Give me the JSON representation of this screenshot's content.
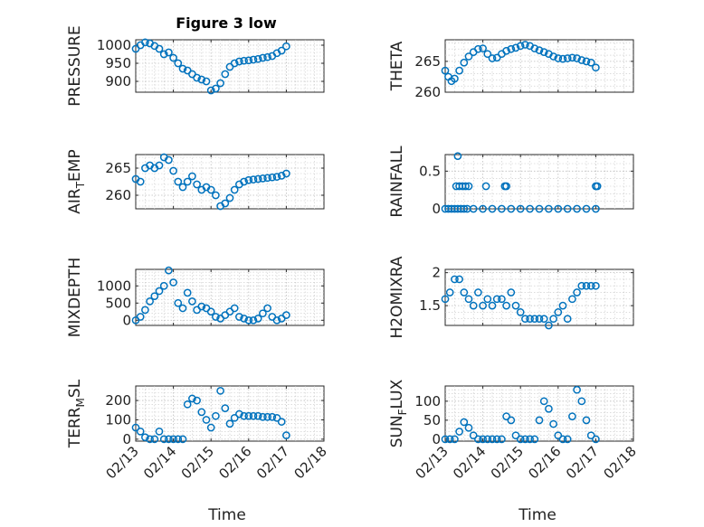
{
  "figure_title": "Figure 3 low",
  "colors": {
    "marker": "#0072BD",
    "axes": "#262626",
    "grid": "#c8c8c8"
  },
  "chart_data": [
    {
      "type": "scatter",
      "ylabel": "PRESSURE",
      "ylim": [
        870,
        1015
      ],
      "yticks": [
        900,
        950,
        1000
      ],
      "ytick_labels": [
        "900",
        "950",
        "1000"
      ],
      "grid": true,
      "x": [
        "02/13 00:00",
        "02/13 03:00",
        "02/13 06:00",
        "02/13 09:00",
        "02/13 12:00",
        "02/13 15:00",
        "02/13 18:00",
        "02/13 21:00",
        "02/14 00:00",
        "02/14 03:00",
        "02/14 06:00",
        "02/14 09:00",
        "02/14 12:00",
        "02/14 15:00",
        "02/14 18:00",
        "02/14 21:00",
        "02/15 00:00",
        "02/15 03:00",
        "02/15 06:00",
        "02/15 09:00",
        "02/15 12:00",
        "02/15 15:00",
        "02/15 18:00",
        "02/15 21:00",
        "02/16 00:00",
        "02/16 03:00",
        "02/16 06:00",
        "02/16 09:00",
        "02/16 12:00",
        "02/16 15:00",
        "02/16 18:00",
        "02/16 21:00",
        "02/17 00:00"
      ],
      "y": [
        990,
        1000,
        1008,
        1005,
        998,
        990,
        975,
        980,
        965,
        950,
        935,
        930,
        920,
        910,
        905,
        900,
        875,
        880,
        895,
        920,
        940,
        950,
        955,
        957,
        958,
        960,
        962,
        965,
        967,
        970,
        978,
        985,
        997
      ]
    },
    {
      "type": "scatter",
      "ylabel": "THETA",
      "ylim": [
        260,
        268.5
      ],
      "yticks": [
        260,
        265
      ],
      "ytick_labels": [
        "260",
        "265"
      ],
      "grid": true,
      "x": [
        "02/13 00:00",
        "02/13 02:00",
        "02/13 04:00",
        "02/13 06:00",
        "02/13 09:00",
        "02/13 12:00",
        "02/13 15:00",
        "02/13 18:00",
        "02/13 21:00",
        "02/14 00:00",
        "02/14 03:00",
        "02/14 06:00",
        "02/14 09:00",
        "02/14 12:00",
        "02/14 15:00",
        "02/14 18:00",
        "02/14 21:00",
        "02/15 00:00",
        "02/15 03:00",
        "02/15 06:00",
        "02/15 09:00",
        "02/15 12:00",
        "02/15 15:00",
        "02/15 18:00",
        "02/15 21:00",
        "02/16 00:00",
        "02/16 03:00",
        "02/16 06:00",
        "02/16 09:00",
        "02/16 12:00",
        "02/16 15:00",
        "02/16 18:00",
        "02/16 21:00",
        "02/17 00:00"
      ],
      "y": [
        263.5,
        262.5,
        261.8,
        262.2,
        263.5,
        264.8,
        265.8,
        266.5,
        267,
        267.1,
        266.2,
        265.5,
        265.6,
        266.2,
        266.7,
        267,
        267.2,
        267.5,
        267.7,
        267.5,
        267.1,
        266.8,
        266.5,
        266.2,
        265.8,
        265.5,
        265.4,
        265.5,
        265.6,
        265.5,
        265.2,
        265,
        264.8,
        264
      ]
    },
    {
      "type": "scatter",
      "ylabel": "AIR_TEMP",
      "ylim": [
        257.5,
        267.5
      ],
      "yticks": [
        260,
        265
      ],
      "ytick_labels": [
        "260",
        "265"
      ],
      "grid": true,
      "x": [
        "02/13 00:00",
        "02/13 03:00",
        "02/13 06:00",
        "02/13 09:00",
        "02/13 12:00",
        "02/13 15:00",
        "02/13 18:00",
        "02/13 21:00",
        "02/14 00:00",
        "02/14 03:00",
        "02/14 06:00",
        "02/14 09:00",
        "02/14 12:00",
        "02/14 15:00",
        "02/14 18:00",
        "02/14 21:00",
        "02/15 00:00",
        "02/15 03:00",
        "02/15 06:00",
        "02/15 09:00",
        "02/15 12:00",
        "02/15 15:00",
        "02/15 18:00",
        "02/15 21:00",
        "02/16 00:00",
        "02/16 03:00",
        "02/16 06:00",
        "02/16 09:00",
        "02/16 12:00",
        "02/16 15:00",
        "02/16 18:00",
        "02/16 21:00",
        "02/17 00:00"
      ],
      "y": [
        263,
        262.5,
        265,
        265.5,
        265,
        265.5,
        267,
        266.5,
        264.5,
        262.5,
        261.5,
        262.5,
        263.5,
        262,
        261,
        261.5,
        261,
        260,
        258,
        258.5,
        259.5,
        261,
        262,
        262.5,
        262.8,
        262.9,
        263,
        263.1,
        263.2,
        263.3,
        263.4,
        263.6,
        264
      ]
    },
    {
      "type": "scatter",
      "ylabel": "RAINFALL",
      "ylim": [
        0,
        0.72
      ],
      "yticks": [
        0,
        0.5
      ],
      "ytick_labels": [
        "0",
        "0.5"
      ],
      "grid": true,
      "x": [
        "02/13 00:00",
        "02/13 02:00",
        "02/13 04:00",
        "02/13 06:00",
        "02/13 08:00",
        "02/13 10:00",
        "02/13 12:00",
        "02/13 14:00",
        "02/13 18:00",
        "02/14 00:00",
        "02/14 06:00",
        "02/14 12:00",
        "02/14 18:00",
        "02/15 00:00",
        "02/15 06:00",
        "02/15 12:00",
        "02/15 18:00",
        "02/16 00:00",
        "02/16 06:00",
        "02/16 12:00",
        "02/16 18:00",
        "02/17 00:00",
        "02/13 07:00",
        "02/13 09:00",
        "02/13 11:00",
        "02/13 13:00",
        "02/13 15:00",
        "02/13 08:00",
        "02/14 02:00",
        "02/14 14:00",
        "02/14 15:00",
        "02/17 00:00",
        "02/17 01:00"
      ],
      "y": [
        0,
        0,
        0,
        0,
        0,
        0,
        0,
        0,
        0,
        0,
        0,
        0,
        0,
        0,
        0,
        0,
        0,
        0,
        0,
        0,
        0,
        0,
        0.3,
        0.3,
        0.3,
        0.3,
        0.3,
        0.7,
        0.3,
        0.3,
        0.3,
        0.3,
        0.3
      ]
    },
    {
      "type": "scatter",
      "ylabel": "MIXDEPTH",
      "ylim": [
        -150,
        1480
      ],
      "yticks": [
        0,
        500,
        1000
      ],
      "ytick_labels": [
        "0",
        "500",
        "1000"
      ],
      "grid": true,
      "x": [
        "02/13 00:00",
        "02/13 03:00",
        "02/13 06:00",
        "02/13 09:00",
        "02/13 12:00",
        "02/13 15:00",
        "02/13 18:00",
        "02/13 21:00",
        "02/14 00:00",
        "02/14 03:00",
        "02/14 06:00",
        "02/14 09:00",
        "02/14 12:00",
        "02/14 15:00",
        "02/14 18:00",
        "02/14 21:00",
        "02/15 00:00",
        "02/15 03:00",
        "02/15 06:00",
        "02/15 09:00",
        "02/15 12:00",
        "02/15 15:00",
        "02/15 18:00",
        "02/15 21:00",
        "02/16 00:00",
        "02/16 03:00",
        "02/16 06:00",
        "02/16 09:00",
        "02/16 12:00",
        "02/16 15:00",
        "02/16 18:00",
        "02/16 21:00",
        "02/17 00:00"
      ],
      "y": [
        0,
        100,
        300,
        550,
        700,
        850,
        1000,
        1450,
        1100,
        500,
        350,
        800,
        550,
        300,
        400,
        350,
        250,
        100,
        50,
        150,
        250,
        350,
        100,
        50,
        0,
        0,
        50,
        200,
        350,
        100,
        0,
        50,
        150
      ]
    },
    {
      "type": "scatter",
      "ylabel": "H2OMIXRA",
      "ylim": [
        1.2,
        2.05
      ],
      "yticks": [
        1.5,
        2
      ],
      "ytick_labels": [
        "1.5",
        "2"
      ],
      "grid": true,
      "x": [
        "02/13 00:00",
        "02/13 03:00",
        "02/13 06:00",
        "02/13 09:00",
        "02/13 12:00",
        "02/13 15:00",
        "02/13 18:00",
        "02/13 21:00",
        "02/14 00:00",
        "02/14 03:00",
        "02/14 06:00",
        "02/14 09:00",
        "02/14 12:00",
        "02/14 15:00",
        "02/14 18:00",
        "02/14 21:00",
        "02/15 00:00",
        "02/15 03:00",
        "02/15 06:00",
        "02/15 09:00",
        "02/15 12:00",
        "02/15 15:00",
        "02/15 18:00",
        "02/15 21:00",
        "02/16 00:00",
        "02/16 03:00",
        "02/16 06:00",
        "02/16 09:00",
        "02/16 12:00",
        "02/16 15:00",
        "02/16 18:00",
        "02/16 21:00",
        "02/17 00:00"
      ],
      "y": [
        1.6,
        1.7,
        1.9,
        1.9,
        1.7,
        1.6,
        1.5,
        1.7,
        1.5,
        1.6,
        1.5,
        1.6,
        1.6,
        1.5,
        1.7,
        1.5,
        1.4,
        1.3,
        1.3,
        1.3,
        1.3,
        1.3,
        1.2,
        1.3,
        1.4,
        1.5,
        1.3,
        1.6,
        1.7,
        1.8,
        1.8,
        1.8,
        1.8
      ]
    },
    {
      "type": "scatter",
      "ylabel": "TERR_MSL",
      "ylim": [
        -10,
        275
      ],
      "yticks": [
        0,
        100,
        200
      ],
      "ytick_labels": [
        "0",
        "100",
        "200"
      ],
      "grid": true,
      "x": [
        "02/13 00:00",
        "02/13 03:00",
        "02/13 06:00",
        "02/13 09:00",
        "02/13 12:00",
        "02/13 15:00",
        "02/13 18:00",
        "02/13 21:00",
        "02/14 00:00",
        "02/14 03:00",
        "02/14 06:00",
        "02/14 09:00",
        "02/14 12:00",
        "02/14 15:00",
        "02/14 18:00",
        "02/14 21:00",
        "02/15 00:00",
        "02/15 03:00",
        "02/15 06:00",
        "02/15 09:00",
        "02/15 12:00",
        "02/15 15:00",
        "02/15 18:00",
        "02/15 21:00",
        "02/16 00:00",
        "02/16 03:00",
        "02/16 06:00",
        "02/16 09:00",
        "02/16 12:00",
        "02/16 15:00",
        "02/16 18:00",
        "02/16 21:00",
        "02/17 00:00"
      ],
      "y": [
        60,
        40,
        10,
        0,
        0,
        40,
        0,
        0,
        0,
        0,
        0,
        180,
        210,
        200,
        140,
        100,
        60,
        120,
        250,
        160,
        80,
        110,
        130,
        120,
        120,
        120,
        120,
        115,
        115,
        115,
        110,
        90,
        20
      ]
    },
    {
      "type": "scatter",
      "ylabel": "SUN_FLUX",
      "ylim": [
        -5,
        140
      ],
      "yticks": [
        0,
        50,
        100
      ],
      "ytick_labels": [
        "0",
        "50",
        "100"
      ],
      "grid": true,
      "x": [
        "02/13 00:00",
        "02/13 03:00",
        "02/13 06:00",
        "02/13 09:00",
        "02/13 12:00",
        "02/13 15:00",
        "02/13 18:00",
        "02/13 21:00",
        "02/14 00:00",
        "02/14 03:00",
        "02/14 06:00",
        "02/14 09:00",
        "02/14 12:00",
        "02/14 15:00",
        "02/14 18:00",
        "02/14 21:00",
        "02/15 00:00",
        "02/15 03:00",
        "02/15 06:00",
        "02/15 09:00",
        "02/15 12:00",
        "02/15 15:00",
        "02/15 18:00",
        "02/15 21:00",
        "02/16 00:00",
        "02/16 03:00",
        "02/16 06:00",
        "02/16 09:00",
        "02/16 12:00",
        "02/16 15:00",
        "02/16 18:00",
        "02/16 21:00",
        "02/17 00:00"
      ],
      "y": [
        0,
        0,
        0,
        20,
        45,
        30,
        10,
        0,
        0,
        0,
        0,
        0,
        0,
        60,
        50,
        10,
        0,
        0,
        0,
        0,
        50,
        100,
        80,
        40,
        10,
        0,
        0,
        60,
        130,
        100,
        50,
        10,
        0
      ]
    }
  ],
  "x_axis": {
    "ticks": [
      "02/13",
      "02/14",
      "02/15",
      "02/16",
      "02/17",
      "02/18"
    ],
    "label": "Time"
  }
}
